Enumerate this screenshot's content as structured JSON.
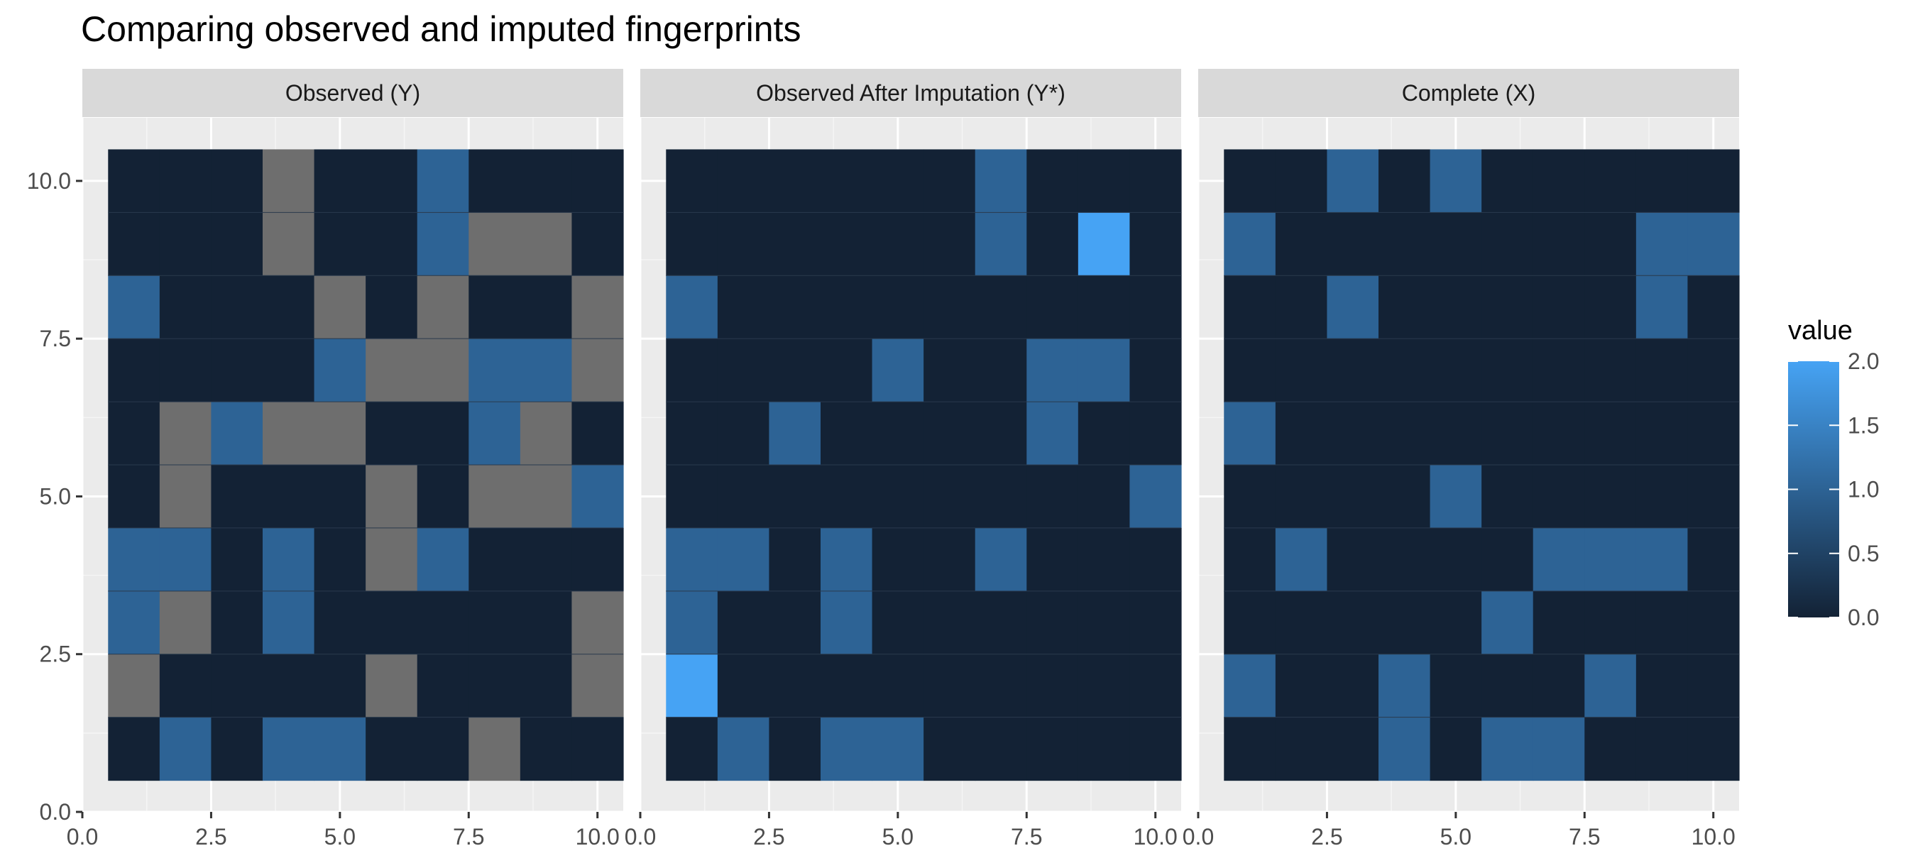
{
  "chart_data": {
    "type": "heatmap",
    "title": "Comparing observed and imputed fingerprints",
    "x_ticks": [
      "0.0",
      "2.5",
      "5.0",
      "7.5",
      "10.0"
    ],
    "y_ticks": [
      "0.0",
      "2.5",
      "5.0",
      "7.5",
      "10.0"
    ],
    "xlim": [
      0,
      10.5
    ],
    "ylim": [
      0,
      11
    ],
    "grid": true,
    "na_color": "#6e6e6e",
    "color_scale": {
      "low": "#132235",
      "high": "#46a3f4",
      "min": 0,
      "max": 2
    },
    "legend": {
      "title": "value",
      "position": "right",
      "ticks": [
        "0.0",
        "0.5",
        "1.0",
        "1.5",
        "2.0"
      ]
    },
    "panels": [
      {
        "name": "Observed (Y)",
        "rows_top_to_bottom": [
          [
            0,
            0,
            0,
            null,
            0,
            0,
            1,
            0,
            0,
            0
          ],
          [
            0,
            0,
            0,
            null,
            0,
            0,
            1,
            null,
            null,
            0
          ],
          [
            1,
            0,
            0,
            0,
            null,
            0,
            null,
            0,
            0,
            null
          ],
          [
            0,
            0,
            0,
            0,
            1,
            null,
            null,
            1,
            1,
            null
          ],
          [
            0,
            null,
            1,
            null,
            null,
            0,
            0,
            1,
            null,
            0
          ],
          [
            0,
            null,
            0,
            0,
            0,
            null,
            0,
            null,
            null,
            1
          ],
          [
            1,
            1,
            0,
            1,
            0,
            null,
            1,
            0,
            0,
            0
          ],
          [
            1,
            null,
            0,
            1,
            0,
            0,
            0,
            0,
            0,
            null
          ],
          [
            null,
            0,
            0,
            0,
            0,
            null,
            0,
            0,
            0,
            null
          ],
          [
            0,
            1,
            0,
            1,
            1,
            0,
            0,
            null,
            0,
            0
          ]
        ]
      },
      {
        "name": "Observed After Imputation (Y*)",
        "rows_top_to_bottom": [
          [
            0,
            0,
            0,
            0,
            0,
            0,
            1,
            0,
            0,
            0
          ],
          [
            0,
            0,
            0,
            0,
            0,
            0,
            1,
            0,
            2,
            0
          ],
          [
            1,
            0,
            0,
            0,
            0,
            0,
            0,
            0,
            0,
            0
          ],
          [
            0,
            0,
            0,
            0,
            1,
            0,
            0,
            1,
            1,
            0
          ],
          [
            0,
            0,
            1,
            0,
            0,
            0,
            0,
            1,
            0,
            0
          ],
          [
            0,
            0,
            0,
            0,
            0,
            0,
            0,
            0,
            0,
            1
          ],
          [
            1,
            1,
            0,
            1,
            0,
            0,
            1,
            0,
            0,
            0
          ],
          [
            1,
            0,
            0,
            1,
            0,
            0,
            0,
            0,
            0,
            0
          ],
          [
            2,
            0,
            0,
            0,
            0,
            0,
            0,
            0,
            0,
            0
          ],
          [
            0,
            1,
            0,
            1,
            1,
            0,
            0,
            0,
            0,
            0
          ]
        ]
      },
      {
        "name": "Complete (X)",
        "rows_top_to_bottom": [
          [
            0,
            0,
            1,
            0,
            1,
            0,
            0,
            0,
            0,
            0
          ],
          [
            1,
            0,
            0,
            0,
            0,
            0,
            0,
            0,
            1,
            1
          ],
          [
            0,
            0,
            1,
            0,
            0,
            0,
            0,
            0,
            1,
            0
          ],
          [
            0,
            0,
            0,
            0,
            0,
            0,
            0,
            0,
            0,
            0
          ],
          [
            1,
            0,
            0,
            0,
            0,
            0,
            0,
            0,
            0,
            0
          ],
          [
            0,
            0,
            0,
            0,
            1,
            0,
            0,
            0,
            0,
            0
          ],
          [
            0,
            1,
            0,
            0,
            0,
            0,
            1,
            1,
            1,
            0
          ],
          [
            0,
            0,
            0,
            0,
            0,
            1,
            0,
            0,
            0,
            0
          ],
          [
            1,
            0,
            0,
            1,
            0,
            0,
            0,
            1,
            0,
            0
          ],
          [
            0,
            0,
            0,
            1,
            0,
            1,
            1,
            0,
            0,
            0
          ]
        ]
      }
    ]
  }
}
